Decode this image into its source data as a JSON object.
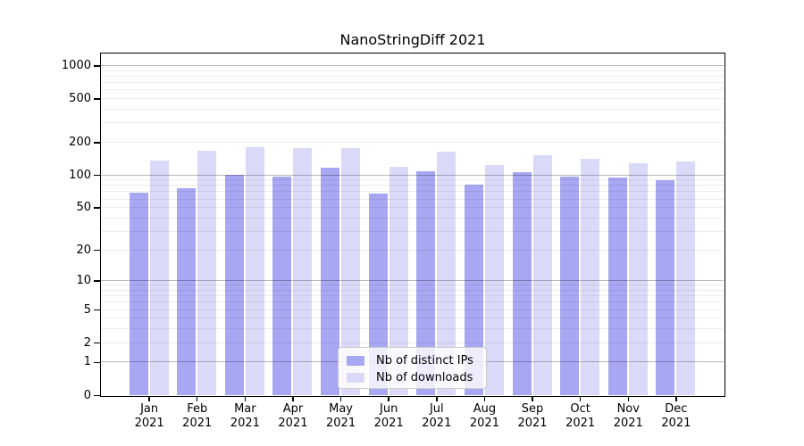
{
  "title": "NanoStringDiff 2021",
  "legend": {
    "entries": [
      {
        "label": "Nb of distinct IPs",
        "color": "#a7a7f3"
      },
      {
        "label": "Nb of downloads",
        "color": "#dadaf8"
      }
    ]
  },
  "chart_data": {
    "type": "bar",
    "title": "NanoStringDiff 2021",
    "categories": [
      "Jan 2021",
      "Feb 2021",
      "Mar 2021",
      "Apr 2021",
      "May 2021",
      "Jun 2021",
      "Jul 2021",
      "Aug 2021",
      "Sep 2021",
      "Oct 2021",
      "Nov 2021",
      "Dec 2021"
    ],
    "series": [
      {
        "name": "Nb of distinct IPs",
        "color": "#a7a7f3",
        "values": [
          68,
          76,
          100,
          97,
          116,
          67,
          108,
          82,
          106,
          96,
          95,
          90
        ]
      },
      {
        "name": "Nb of downloads",
        "color": "#dadaf8",
        "values": [
          135,
          166,
          180,
          176,
          175,
          119,
          165,
          124,
          151,
          142,
          129,
          134
        ]
      }
    ],
    "xlabel": "",
    "ylabel": "",
    "yscale": "log10(value+1)",
    "ylim": [
      0,
      1285
    ],
    "yticks": [
      1000,
      500,
      200,
      100,
      50,
      20,
      10,
      5,
      2,
      1,
      0
    ],
    "grid": "horizontal, major at powers of 10, minor at 2-9 multiples",
    "legend_position": "lower center"
  },
  "colors": {
    "background": "#ffffff",
    "axis": "#000000",
    "major_grid": "#bdbdbd",
    "minor_grid": "#ededed"
  }
}
